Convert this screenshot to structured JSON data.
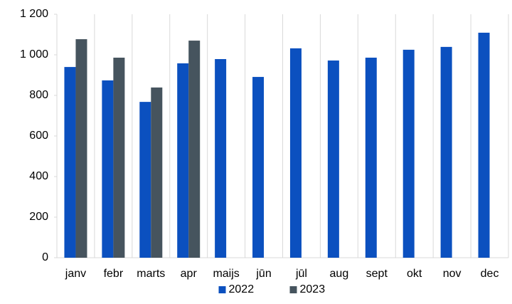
{
  "chart_data": {
    "type": "bar",
    "categories": [
      "janv",
      "febr",
      "marts",
      "apr",
      "maijs",
      "jūn",
      "jūl",
      "aug",
      "sept",
      "okt",
      "nov",
      "dec"
    ],
    "series": [
      {
        "name": "2022",
        "color": "#0b50bf",
        "values": [
          940,
          874,
          768,
          958,
          979,
          891,
          1032,
          972,
          986,
          1025,
          1039,
          1109
        ]
      },
      {
        "name": "2023",
        "color": "#46545e",
        "values": [
          1077,
          986,
          839,
          1070,
          null,
          null,
          null,
          null,
          null,
          null,
          null,
          null
        ]
      }
    ],
    "ylim": [
      0,
      1200
    ],
    "yticks": [
      0,
      200,
      400,
      600,
      800,
      {
        "value": 1000,
        "label": "1 000"
      },
      {
        "value": 1200,
        "label": "1 200"
      }
    ],
    "legend": "bottom"
  }
}
